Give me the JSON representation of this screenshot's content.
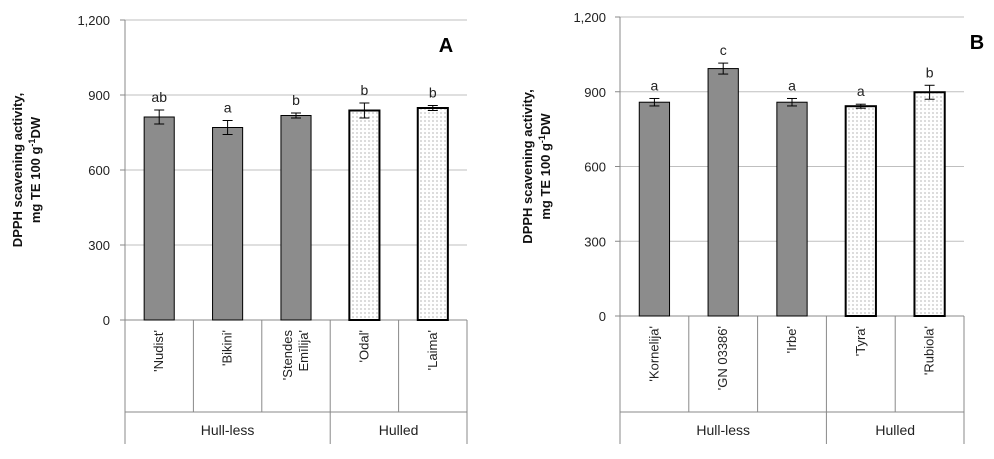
{
  "colors": {
    "hull_less": "#8c8c8c",
    "hulled_fill": "#ffffff",
    "stroke": "#000000",
    "grid": "#bfbfbf"
  },
  "chart_data": [
    {
      "type": "bar",
      "panel_label": "A",
      "ylabel_line1": "DPPH scavening activity,",
      "ylabel_line2_pre": "mg  TE 100 g",
      "ylabel_line2_sup": "-1",
      "ylabel_line2_post": "DW",
      "ylim": [
        0,
        1200
      ],
      "yticks": [
        "0",
        "300",
        "600",
        "900",
        "1,200"
      ],
      "ytick_values": [
        0,
        300,
        600,
        900,
        1200
      ],
      "grid": true,
      "categories": [
        {
          "label_lines": [
            "'Nudist'"
          ],
          "value": 812,
          "error": 28,
          "sig": "ab",
          "group": "hull_less"
        },
        {
          "label_lines": [
            "'Bikini'"
          ],
          "value": 770,
          "error": 28,
          "sig": "a",
          "group": "hull_less"
        },
        {
          "label_lines": [
            "'Stendes",
            "Emīlija'"
          ],
          "value": 818,
          "error": 10,
          "sig": "b",
          "group": "hull_less"
        },
        {
          "label_lines": [
            "'Odal'"
          ],
          "value": 838,
          "error": 30,
          "sig": "b",
          "group": "hulled"
        },
        {
          "label_lines": [
            "'Laima'"
          ],
          "value": 848,
          "error": 10,
          "sig": "b",
          "group": "hulled"
        }
      ],
      "groups": [
        {
          "label": "Hull-less",
          "count": 3
        },
        {
          "label": "Hulled",
          "count": 2
        }
      ]
    },
    {
      "type": "bar",
      "panel_label": "B",
      "ylabel_line1": "DPPH scavening activity,",
      "ylabel_line2_pre": "mg  TE 100 g",
      "ylabel_line2_sup": "-1",
      "ylabel_line2_post": "DW",
      "ylim": [
        0,
        1200
      ],
      "yticks": [
        "0",
        "300",
        "600",
        "900",
        "1,200"
      ],
      "ytick_values": [
        0,
        300,
        600,
        900,
        1200
      ],
      "grid": true,
      "categories": [
        {
          "label_lines": [
            "'Kornelija'"
          ],
          "value": 858,
          "error": 15,
          "sig": "a",
          "group": "hull_less"
        },
        {
          "label_lines": [
            "'GN 03386'"
          ],
          "value": 993,
          "error": 22,
          "sig": "c",
          "group": "hull_less"
        },
        {
          "label_lines": [
            "'Irbe'"
          ],
          "value": 858,
          "error": 15,
          "sig": "a",
          "group": "hull_less"
        },
        {
          "label_lines": [
            "'Tyra'"
          ],
          "value": 842,
          "error": 8,
          "sig": "a",
          "group": "hulled"
        },
        {
          "label_lines": [
            "'Rubiola'"
          ],
          "value": 898,
          "error": 28,
          "sig": "b",
          "group": "hulled"
        }
      ],
      "groups": [
        {
          "label": "Hull-less",
          "count": 3
        },
        {
          "label": "Hulled",
          "count": 2
        }
      ]
    }
  ]
}
